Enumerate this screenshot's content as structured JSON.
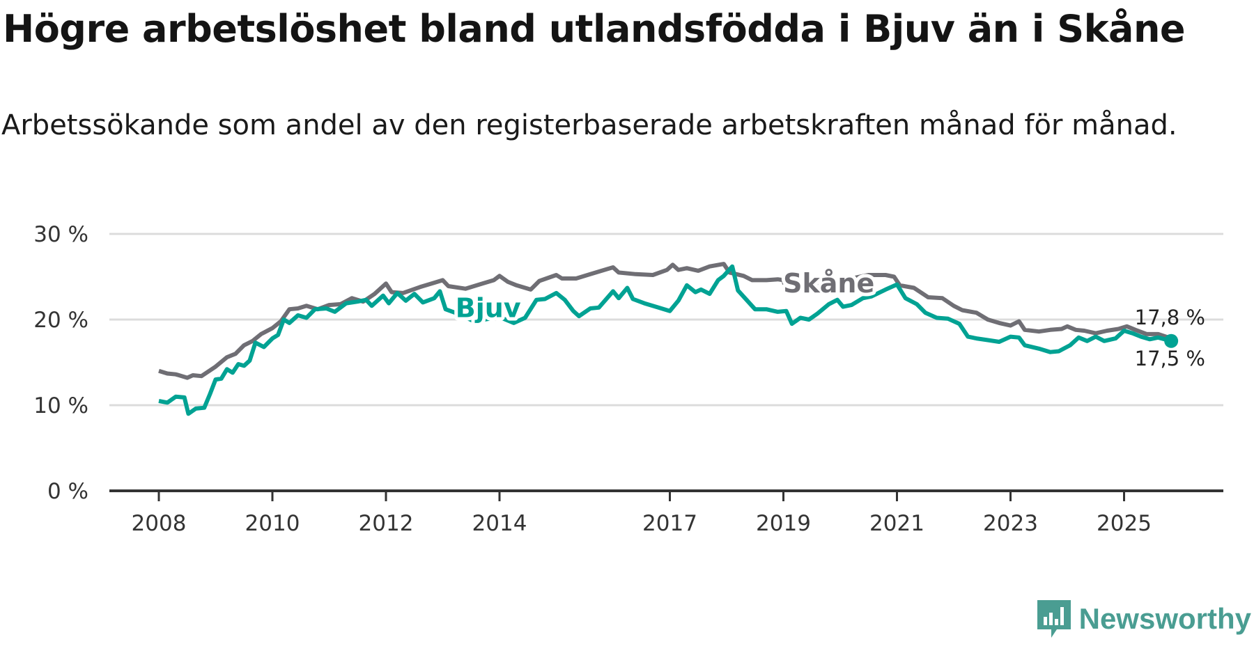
{
  "title": "Högre arbetslöshet bland utlandsfödda i Bjuv än i Skåne",
  "subtitle": "Arbetssökande som andel av den registerbaserade arbetskraften månad för månad.",
  "brand": {
    "name": "Newsworthy",
    "color": "#4a9d92"
  },
  "chart_data": {
    "type": "line",
    "title": "Högre arbetslöshet bland utlandsfödda i Bjuv än i Skåne",
    "xlabel": "",
    "ylabel": "",
    "ylim": [
      0,
      30
    ],
    "xlim": [
      2007.1,
      2026.6
    ],
    "yticks": [
      {
        "value": 0,
        "label": "0 %"
      },
      {
        "value": 10,
        "label": "10 %"
      },
      {
        "value": 20,
        "label": "20 %"
      },
      {
        "value": 30,
        "label": "30 %"
      }
    ],
    "xticks": [
      {
        "value": 2008,
        "label": "2008"
      },
      {
        "value": 2010,
        "label": "2010"
      },
      {
        "value": 2012,
        "label": "2012"
      },
      {
        "value": 2014,
        "label": "2014"
      },
      {
        "value": 2017,
        "label": "2017"
      },
      {
        "value": 2019,
        "label": "2019"
      },
      {
        "value": 2021,
        "label": "2021"
      },
      {
        "value": 2023,
        "label": "2023"
      },
      {
        "value": 2025,
        "label": "2025"
      }
    ],
    "grid": true,
    "series": [
      {
        "name": "Skåne",
        "color": "#6f6e74",
        "end_label": "17,8 %",
        "label_at": [
          2014.6,
          24.5
        ],
        "points": [
          [
            2008.0,
            14.0
          ],
          [
            2008.15,
            13.7
          ],
          [
            2008.3,
            13.6
          ],
          [
            2008.5,
            13.2
          ],
          [
            2008.6,
            13.5
          ],
          [
            2008.75,
            13.4
          ],
          [
            2009.0,
            14.5
          ],
          [
            2009.2,
            15.6
          ],
          [
            2009.35,
            16.0
          ],
          [
            2009.5,
            17.0
          ],
          [
            2009.65,
            17.5
          ],
          [
            2009.8,
            18.3
          ],
          [
            2010.0,
            19.0
          ],
          [
            2010.15,
            19.8
          ],
          [
            2010.3,
            21.2
          ],
          [
            2010.45,
            21.3
          ],
          [
            2010.6,
            21.6
          ],
          [
            2010.8,
            21.2
          ],
          [
            2011.0,
            21.7
          ],
          [
            2011.2,
            21.8
          ],
          [
            2011.4,
            22.5
          ],
          [
            2011.6,
            22.1
          ],
          [
            2011.8,
            23.0
          ],
          [
            2012.0,
            24.2
          ],
          [
            2012.1,
            23.2
          ],
          [
            2012.3,
            23.1
          ],
          [
            2012.6,
            23.8
          ],
          [
            2012.85,
            24.3
          ],
          [
            2013.0,
            24.6
          ],
          [
            2013.1,
            23.9
          ],
          [
            2013.4,
            23.6
          ],
          [
            2013.7,
            24.2
          ],
          [
            2013.9,
            24.6
          ],
          [
            2014.0,
            25.1
          ],
          [
            2014.15,
            24.4
          ],
          [
            2014.3,
            24.0
          ],
          [
            2014.55,
            23.5
          ],
          [
            2014.7,
            24.5
          ],
          [
            2015.0,
            25.2
          ],
          [
            2015.1,
            24.8
          ],
          [
            2015.35,
            24.8
          ],
          [
            2015.6,
            25.3
          ],
          [
            2015.9,
            25.9
          ],
          [
            2016.0,
            26.1
          ],
          [
            2016.1,
            25.5
          ],
          [
            2016.4,
            25.3
          ],
          [
            2016.7,
            25.2
          ],
          [
            2016.95,
            25.8
          ],
          [
            2017.05,
            26.4
          ],
          [
            2017.15,
            25.8
          ],
          [
            2017.3,
            26.0
          ],
          [
            2017.5,
            25.7
          ],
          [
            2017.7,
            26.2
          ],
          [
            2017.95,
            26.5
          ],
          [
            2018.05,
            25.5
          ],
          [
            2018.3,
            25.1
          ],
          [
            2018.45,
            24.6
          ],
          [
            2018.7,
            24.6
          ],
          [
            2018.9,
            24.7
          ],
          [
            2019.0,
            24.6
          ],
          [
            2019.05,
            23.3
          ],
          [
            2020.2,
            24.8
          ],
          [
            2020.5,
            25.2
          ],
          [
            2020.8,
            25.2
          ],
          [
            2020.95,
            25.0
          ],
          [
            2021.05,
            24.0
          ],
          [
            2021.3,
            23.7
          ],
          [
            2021.55,
            22.6
          ],
          [
            2021.8,
            22.5
          ],
          [
            2022.0,
            21.6
          ],
          [
            2022.15,
            21.1
          ],
          [
            2022.4,
            20.8
          ],
          [
            2022.6,
            20.0
          ],
          [
            2022.8,
            19.6
          ],
          [
            2023.0,
            19.3
          ],
          [
            2023.15,
            19.8
          ],
          [
            2023.25,
            18.8
          ],
          [
            2023.5,
            18.6
          ],
          [
            2023.7,
            18.8
          ],
          [
            2023.9,
            18.9
          ],
          [
            2024.0,
            19.2
          ],
          [
            2024.15,
            18.8
          ],
          [
            2024.3,
            18.7
          ],
          [
            2024.5,
            18.4
          ],
          [
            2024.7,
            18.7
          ],
          [
            2024.9,
            18.9
          ],
          [
            2025.05,
            19.2
          ],
          [
            2025.2,
            18.8
          ],
          [
            2025.4,
            18.3
          ],
          [
            2025.6,
            18.3
          ],
          [
            2025.83,
            17.8
          ]
        ]
      },
      {
        "name": "Bjuv",
        "color": "#00a293",
        "end_label": "17,5 %",
        "label_at": [
          2013.8,
          21.6
        ],
        "points": [
          [
            2008.0,
            10.5
          ],
          [
            2008.15,
            10.3
          ],
          [
            2008.3,
            11.0
          ],
          [
            2008.45,
            10.9
          ],
          [
            2008.52,
            9.0
          ],
          [
            2008.65,
            9.6
          ],
          [
            2008.8,
            9.7
          ],
          [
            2008.9,
            11.3
          ],
          [
            2009.0,
            13.0
          ],
          [
            2009.1,
            13.1
          ],
          [
            2009.2,
            14.2
          ],
          [
            2009.3,
            13.8
          ],
          [
            2009.4,
            14.8
          ],
          [
            2009.5,
            14.6
          ],
          [
            2009.6,
            15.2
          ],
          [
            2009.7,
            17.3
          ],
          [
            2009.85,
            16.8
          ],
          [
            2010.0,
            17.8
          ],
          [
            2010.1,
            18.2
          ],
          [
            2010.2,
            20.0
          ],
          [
            2010.3,
            19.6
          ],
          [
            2010.45,
            20.5
          ],
          [
            2010.6,
            20.2
          ],
          [
            2010.75,
            21.2
          ],
          [
            2010.95,
            21.3
          ],
          [
            2011.1,
            20.9
          ],
          [
            2011.3,
            21.9
          ],
          [
            2011.5,
            22.1
          ],
          [
            2011.65,
            22.3
          ],
          [
            2011.75,
            21.6
          ],
          [
            2011.95,
            22.8
          ],
          [
            2012.05,
            21.9
          ],
          [
            2012.2,
            23.1
          ],
          [
            2012.35,
            22.2
          ],
          [
            2012.5,
            23.0
          ],
          [
            2012.65,
            22.0
          ],
          [
            2012.85,
            22.5
          ],
          [
            2012.95,
            23.3
          ],
          [
            2013.05,
            21.2
          ],
          [
            2013.3,
            20.6
          ],
          [
            2013.55,
            19.8
          ],
          [
            2014.0,
            20.3
          ],
          [
            2014.25,
            19.6
          ],
          [
            2014.45,
            20.2
          ],
          [
            2014.65,
            22.3
          ],
          [
            2014.8,
            22.4
          ],
          [
            2015.0,
            23.1
          ],
          [
            2015.15,
            22.3
          ],
          [
            2015.3,
            21.0
          ],
          [
            2015.4,
            20.4
          ],
          [
            2015.6,
            21.3
          ],
          [
            2015.75,
            21.4
          ],
          [
            2016.0,
            23.3
          ],
          [
            2016.1,
            22.5
          ],
          [
            2016.25,
            23.7
          ],
          [
            2016.35,
            22.4
          ],
          [
            2016.55,
            21.9
          ],
          [
            2016.8,
            21.4
          ],
          [
            2017.0,
            21.0
          ],
          [
            2017.15,
            22.2
          ],
          [
            2017.3,
            24.0
          ],
          [
            2017.45,
            23.2
          ],
          [
            2017.55,
            23.5
          ],
          [
            2017.7,
            23.0
          ],
          [
            2017.85,
            24.6
          ],
          [
            2017.95,
            25.1
          ],
          [
            2018.1,
            26.2
          ],
          [
            2018.2,
            23.4
          ],
          [
            2018.5,
            21.2
          ],
          [
            2018.7,
            21.2
          ],
          [
            2018.9,
            20.9
          ],
          [
            2019.05,
            21.0
          ],
          [
            2019.15,
            19.5
          ],
          [
            2019.3,
            20.2
          ],
          [
            2019.45,
            20.0
          ],
          [
            2019.6,
            20.7
          ],
          [
            2019.8,
            21.8
          ],
          [
            2019.95,
            22.3
          ],
          [
            2020.05,
            21.5
          ],
          [
            2020.2,
            21.7
          ],
          [
            2020.4,
            22.5
          ],
          [
            2020.55,
            22.7
          ],
          [
            2020.8,
            23.5
          ],
          [
            2021.0,
            24.1
          ],
          [
            2021.15,
            22.5
          ],
          [
            2021.35,
            21.8
          ],
          [
            2021.5,
            20.8
          ],
          [
            2021.7,
            20.2
          ],
          [
            2021.9,
            20.1
          ],
          [
            2022.1,
            19.5
          ],
          [
            2022.25,
            18.0
          ],
          [
            2022.4,
            17.8
          ],
          [
            2022.6,
            17.6
          ],
          [
            2022.8,
            17.4
          ],
          [
            2023.0,
            18.0
          ],
          [
            2023.15,
            17.9
          ],
          [
            2023.25,
            17.0
          ],
          [
            2023.5,
            16.6
          ],
          [
            2023.7,
            16.2
          ],
          [
            2023.85,
            16.3
          ],
          [
            2024.05,
            17.0
          ],
          [
            2024.2,
            17.9
          ],
          [
            2024.35,
            17.5
          ],
          [
            2024.5,
            18.0
          ],
          [
            2024.65,
            17.5
          ],
          [
            2024.85,
            17.8
          ],
          [
            2025.0,
            18.7
          ],
          [
            2025.15,
            18.4
          ],
          [
            2025.3,
            18.0
          ],
          [
            2025.45,
            17.7
          ],
          [
            2025.6,
            17.9
          ],
          [
            2025.83,
            17.5
          ]
        ]
      }
    ]
  }
}
